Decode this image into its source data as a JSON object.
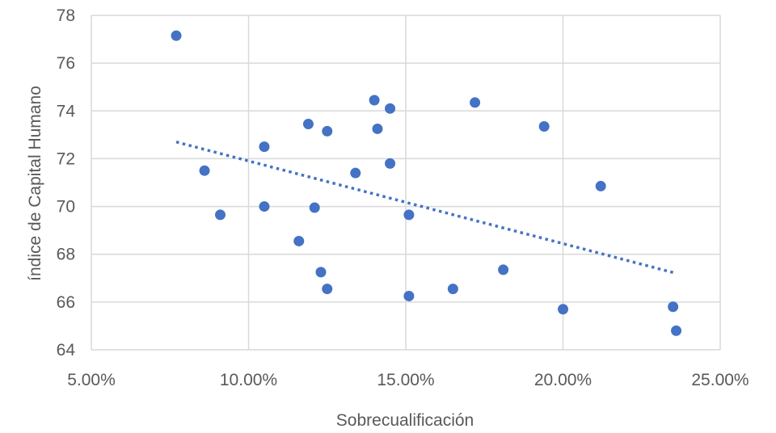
{
  "chart_data": {
    "type": "scatter",
    "title": "",
    "xlabel": "Sobrecualificación",
    "ylabel": "índice de Capital Humano",
    "xlim": [
      0.05,
      0.25
    ],
    "ylim": [
      64,
      78
    ],
    "x_ticks": [
      0.05,
      0.1,
      0.15,
      0.2,
      0.25
    ],
    "x_tick_labels": [
      "5.00%",
      "10.00%",
      "15.00%",
      "20.00%",
      "25.00%"
    ],
    "y_ticks": [
      64,
      66,
      68,
      70,
      72,
      74,
      76,
      78
    ],
    "y_tick_labels": [
      "64",
      "66",
      "68",
      "70",
      "72",
      "74",
      "76",
      "78"
    ],
    "grid": true,
    "legend": "none",
    "colors": {
      "points": "#4472C4",
      "trendline": "#4472C4",
      "grid": "#D9D9D9",
      "text": "#595959"
    },
    "series": [
      {
        "points": [
          [
            0.077,
            77.15
          ],
          [
            0.086,
            71.5
          ],
          [
            0.091,
            69.65
          ],
          [
            0.105,
            72.5
          ],
          [
            0.105,
            70.0
          ],
          [
            0.116,
            68.55
          ],
          [
            0.119,
            73.45
          ],
          [
            0.121,
            69.95
          ],
          [
            0.123,
            67.25
          ],
          [
            0.125,
            73.15
          ],
          [
            0.125,
            66.55
          ],
          [
            0.134,
            71.4
          ],
          [
            0.14,
            74.45
          ],
          [
            0.141,
            73.25
          ],
          [
            0.145,
            74.1
          ],
          [
            0.145,
            71.8
          ],
          [
            0.151,
            69.65
          ],
          [
            0.151,
            66.25
          ],
          [
            0.165,
            66.55
          ],
          [
            0.172,
            74.35
          ],
          [
            0.181,
            67.35
          ],
          [
            0.194,
            73.35
          ],
          [
            0.2,
            65.7
          ],
          [
            0.212,
            70.85
          ],
          [
            0.235,
            65.8
          ],
          [
            0.236,
            64.8
          ]
        ]
      }
    ],
    "trendline": {
      "type": "linear",
      "style": "dotted",
      "x_range": [
        0.077,
        0.236
      ],
      "y_range": [
        72.7,
        67.2
      ]
    }
  }
}
